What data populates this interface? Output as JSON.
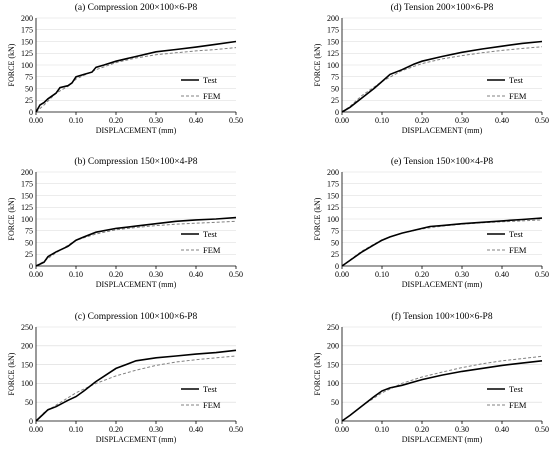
{
  "chart_data": [
    {
      "type": "line",
      "title": "(a) Compression 200×100×6-P8",
      "xlabel": "DISPLACEMENT (mm)",
      "ylabel": "FORCE (kN)",
      "xlim": [
        0,
        0.5
      ],
      "ylim": [
        0,
        200
      ],
      "xticks": [
        "0.00",
        "0.10",
        "0.20",
        "0.30",
        "0.40",
        "0.50"
      ],
      "yticks": [
        "0",
        "25",
        "50",
        "75",
        "100",
        "125",
        "150",
        "175",
        "200"
      ],
      "grid": "horizontal",
      "legend": "right",
      "series": [
        {
          "name": "Test",
          "style": "solid",
          "color": "#000000",
          "x": [
            0,
            0.01,
            0.02,
            0.03,
            0.05,
            0.06,
            0.08,
            0.09,
            0.1,
            0.12,
            0.14,
            0.15,
            0.17,
            0.2,
            0.25,
            0.3,
            0.35,
            0.4,
            0.45,
            0.5
          ],
          "y": [
            0,
            15,
            20,
            28,
            40,
            52,
            56,
            62,
            75,
            80,
            85,
            95,
            100,
            108,
            118,
            128,
            133,
            138,
            144,
            150
          ]
        },
        {
          "name": "FEM",
          "style": "dashed",
          "color": "#808080",
          "x": [
            0,
            0.02,
            0.05,
            0.08,
            0.1,
            0.15,
            0.2,
            0.25,
            0.3,
            0.35,
            0.4,
            0.45,
            0.5
          ],
          "y": [
            0,
            15,
            40,
            55,
            70,
            90,
            105,
            115,
            122,
            126,
            130,
            133,
            137
          ]
        }
      ]
    },
    {
      "type": "line",
      "title": "(d) Tension 200×100×6-P8",
      "xlabel": "DISPLACEMENT (mm)",
      "ylabel": "FORCE (kN)",
      "xlim": [
        0,
        0.5
      ],
      "ylim": [
        0,
        200
      ],
      "xticks": [
        "0.00",
        "0.10",
        "0.20",
        "0.30",
        "0.40",
        "0.50"
      ],
      "yticks": [
        "0",
        "25",
        "50",
        "75",
        "100",
        "125",
        "150",
        "175",
        "200"
      ],
      "grid": "horizontal",
      "legend": "right",
      "series": [
        {
          "name": "Test",
          "style": "solid",
          "color": "#000000",
          "x": [
            0,
            0.02,
            0.05,
            0.08,
            0.1,
            0.12,
            0.15,
            0.18,
            0.2,
            0.25,
            0.3,
            0.35,
            0.4,
            0.45,
            0.5
          ],
          "y": [
            0,
            10,
            30,
            50,
            65,
            80,
            90,
            102,
            108,
            118,
            127,
            134,
            140,
            146,
            150
          ]
        },
        {
          "name": "FEM",
          "style": "dashed",
          "color": "#808080",
          "x": [
            0,
            0.02,
            0.05,
            0.1,
            0.15,
            0.2,
            0.25,
            0.3,
            0.35,
            0.4,
            0.45,
            0.5
          ],
          "y": [
            0,
            12,
            35,
            65,
            88,
            103,
            113,
            120,
            126,
            131,
            135,
            139
          ]
        }
      ]
    },
    {
      "type": "line",
      "title": "(b) Compression 150×100×4-P8",
      "xlabel": "DISPLACEMENT (mm)",
      "ylabel": "FORCE (kN)",
      "xlim": [
        0,
        0.5
      ],
      "ylim": [
        0,
        200
      ],
      "xticks": [
        "0.00",
        "0.10",
        "0.20",
        "0.30",
        "0.40",
        "0.50"
      ],
      "yticks": [
        "0",
        "25",
        "50",
        "75",
        "100",
        "125",
        "150",
        "175",
        "200"
      ],
      "grid": "horizontal",
      "legend": "right",
      "series": [
        {
          "name": "Test",
          "style": "solid",
          "color": "#000000",
          "x": [
            0,
            0.02,
            0.03,
            0.05,
            0.08,
            0.1,
            0.12,
            0.15,
            0.2,
            0.25,
            0.3,
            0.35,
            0.4,
            0.45,
            0.5
          ],
          "y": [
            0,
            8,
            20,
            30,
            42,
            55,
            62,
            72,
            80,
            85,
            90,
            95,
            98,
            100,
            103
          ]
        },
        {
          "name": "FEM",
          "style": "dashed",
          "color": "#808080",
          "x": [
            0,
            0.02,
            0.05,
            0.1,
            0.15,
            0.2,
            0.25,
            0.3,
            0.35,
            0.4,
            0.45,
            0.5
          ],
          "y": [
            0,
            10,
            28,
            55,
            68,
            77,
            82,
            86,
            89,
            91,
            93,
            95
          ]
        }
      ]
    },
    {
      "type": "line",
      "title": "(e) Tension 150×100×4-P8",
      "xlabel": "DISPLACEMENT (mm)",
      "ylabel": "FORCE (kN)",
      "xlim": [
        0,
        0.5
      ],
      "ylim": [
        0,
        200
      ],
      "xticks": [
        "0.00",
        "0.10",
        "0.20",
        "0.30",
        "0.40",
        "0.50"
      ],
      "yticks": [
        "0",
        "25",
        "50",
        "75",
        "100",
        "125",
        "150",
        "175",
        "200"
      ],
      "grid": "horizontal",
      "legend": "right",
      "series": [
        {
          "name": "Test",
          "style": "solid",
          "color": "#000000",
          "x": [
            0,
            0.02,
            0.05,
            0.08,
            0.1,
            0.12,
            0.15,
            0.2,
            0.22,
            0.25,
            0.3,
            0.35,
            0.4,
            0.45,
            0.5
          ],
          "y": [
            0,
            12,
            30,
            45,
            55,
            62,
            70,
            80,
            84,
            86,
            90,
            93,
            96,
            99,
            102
          ]
        },
        {
          "name": "FEM",
          "style": "dashed",
          "color": "#808080",
          "x": [
            0,
            0.02,
            0.05,
            0.1,
            0.15,
            0.2,
            0.25,
            0.3,
            0.35,
            0.4,
            0.45,
            0.5
          ],
          "y": [
            0,
            13,
            32,
            56,
            70,
            79,
            85,
            89,
            92,
            94,
            96,
            98
          ]
        }
      ]
    },
    {
      "type": "line",
      "title": "(c) Compression 100×100×6-P8",
      "xlabel": "DISPLACEMENT (mm)",
      "ylabel": "FORCE (kN)",
      "xlim": [
        0,
        0.5
      ],
      "ylim": [
        0,
        250
      ],
      "xticks": [
        "0.00",
        "0.10",
        "0.20",
        "0.30",
        "0.40",
        "0.50"
      ],
      "yticks": [
        "0",
        "50",
        "100",
        "150",
        "200",
        "250"
      ],
      "grid": "horizontal",
      "legend": "right",
      "series": [
        {
          "name": "Test",
          "style": "solid",
          "color": "#000000",
          "x": [
            0,
            0.02,
            0.03,
            0.05,
            0.08,
            0.1,
            0.12,
            0.15,
            0.2,
            0.25,
            0.3,
            0.35,
            0.4,
            0.45,
            0.5
          ],
          "y": [
            0,
            20,
            30,
            38,
            55,
            65,
            80,
            105,
            140,
            160,
            168,
            173,
            178,
            182,
            188
          ]
        },
        {
          "name": "FEM",
          "style": "dashed",
          "color": "#808080",
          "x": [
            0,
            0.02,
            0.05,
            0.1,
            0.15,
            0.2,
            0.25,
            0.3,
            0.35,
            0.4,
            0.45,
            0.5
          ],
          "y": [
            0,
            22,
            42,
            75,
            100,
            120,
            135,
            148,
            157,
            163,
            168,
            173
          ]
        }
      ]
    },
    {
      "type": "line",
      "title": "(f) Tension 100×100×6-P8",
      "xlabel": "DISPLACEMENT (mm)",
      "ylabel": "FORCE (kN)",
      "xlim": [
        0,
        0.5
      ],
      "ylim": [
        0,
        250
      ],
      "xticks": [
        "0.00",
        "0.10",
        "0.20",
        "0.30",
        "0.40",
        "0.50"
      ],
      "yticks": [
        "0",
        "50",
        "100",
        "150",
        "200",
        "250"
      ],
      "grid": "horizontal",
      "legend": "right",
      "series": [
        {
          "name": "Test",
          "style": "solid",
          "color": "#000000",
          "x": [
            0,
            0.02,
            0.05,
            0.08,
            0.1,
            0.12,
            0.15,
            0.2,
            0.25,
            0.3,
            0.35,
            0.4,
            0.45,
            0.5
          ],
          "y": [
            0,
            15,
            40,
            65,
            80,
            88,
            95,
            110,
            122,
            132,
            140,
            148,
            154,
            160
          ]
        },
        {
          "name": "FEM",
          "style": "dashed",
          "color": "#808080",
          "x": [
            0,
            0.02,
            0.05,
            0.1,
            0.15,
            0.2,
            0.25,
            0.3,
            0.35,
            0.4,
            0.45,
            0.5
          ],
          "y": [
            0,
            15,
            40,
            75,
            100,
            117,
            130,
            142,
            152,
            160,
            166,
            172
          ]
        }
      ]
    }
  ]
}
